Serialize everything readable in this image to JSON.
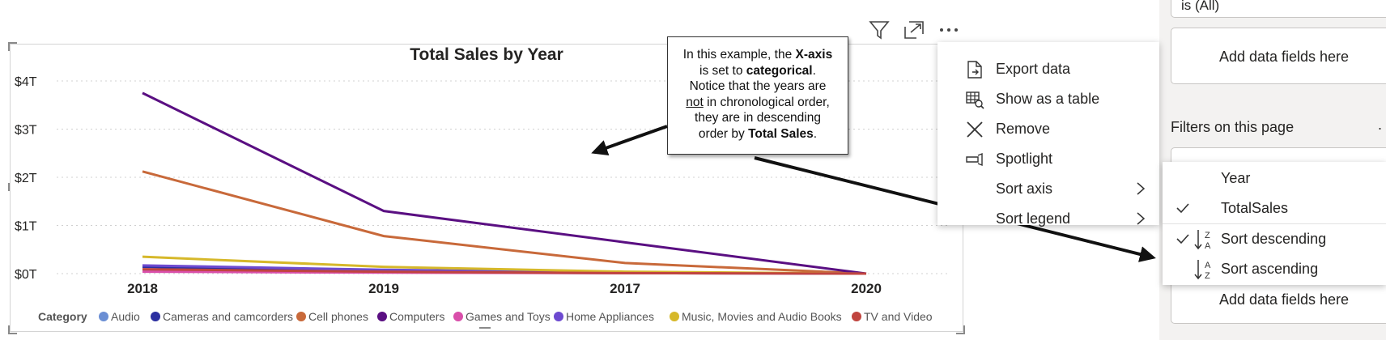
{
  "chart": {
    "title": "Total Sales by Year",
    "legend_title": "Category"
  },
  "chart_data": {
    "type": "line",
    "title": "Total Sales by Year",
    "xlabel": "",
    "ylabel": "",
    "x": [
      "2018",
      "2019",
      "2017",
      "2020"
    ],
    "y_ticks": [
      "$0T",
      "$1T",
      "$2T",
      "$3T",
      "$4T"
    ],
    "ylim": [
      0,
      4
    ],
    "y_unit": "T",
    "grid": "horizontal dotted",
    "legend_position": "bottom",
    "series": [
      {
        "name": "Audio",
        "color": "#6b8fd4",
        "values": [
          0.06,
          0.03,
          0.01,
          0.0
        ]
      },
      {
        "name": "Cameras and camcorders",
        "color": "#2c2fa0",
        "values": [
          0.14,
          0.06,
          0.02,
          0.0
        ]
      },
      {
        "name": "Cell phones",
        "color": "#c8693a",
        "values": [
          2.12,
          0.78,
          0.22,
          0.0
        ]
      },
      {
        "name": "Computers",
        "color": "#5a0f82",
        "values": [
          3.75,
          1.3,
          0.65,
          0.0
        ]
      },
      {
        "name": "Games and Toys",
        "color": "#d94faa",
        "values": [
          0.04,
          0.02,
          0.01,
          0.0
        ]
      },
      {
        "name": "Home Appliances",
        "color": "#6d4ad0",
        "values": [
          0.17,
          0.08,
          0.02,
          0.0
        ]
      },
      {
        "name": "Music, Movies and Audio Books",
        "color": "#d6b82a",
        "values": [
          0.35,
          0.14,
          0.04,
          0.0
        ]
      },
      {
        "name": "TV and Video",
        "color": "#c0443f",
        "values": [
          0.09,
          0.04,
          0.01,
          0.0
        ]
      }
    ]
  },
  "callout": {
    "l1a": "In this example, the ",
    "l1b": "X-axis",
    "l2a": "is set to ",
    "l2b": "categorical",
    "l2c": ".",
    "l3": "Notice that the years are",
    "l4a": "not",
    "l4b": " in chronological order,",
    "l5": "they are in descending",
    "l6a": "order by ",
    "l6b": "Total Sales",
    "l6c": "."
  },
  "context_menu": {
    "items": [
      {
        "label": "Export data",
        "icon": "export-icon"
      },
      {
        "label": "Show as a table",
        "icon": "table-icon"
      },
      {
        "label": "Remove",
        "icon": "close-icon"
      },
      {
        "label": "Spotlight",
        "icon": "spotlight-icon"
      },
      {
        "label": "Sort axis",
        "icon": "chevron-right-icon"
      },
      {
        "label": "Sort legend",
        "icon": "chevron-right-icon"
      }
    ]
  },
  "sort_menu": {
    "items": [
      {
        "label": "Year",
        "checked": false
      },
      {
        "label": "TotalSales",
        "checked": true
      },
      {
        "label": "Sort descending",
        "checked": true
      },
      {
        "label": "Sort ascending",
        "checked": false
      }
    ],
    "desc_glyph_top": "Z",
    "desc_glyph_bottom": "A",
    "asc_glyph_top": "A",
    "asc_glyph_bottom": "Z"
  },
  "filter_pane": {
    "filter_value": "is (All)",
    "add_fields_1": "Add data fields here",
    "section_title": "Filters on this page",
    "more": ".",
    "add_fields_2": "Add data fields here"
  }
}
